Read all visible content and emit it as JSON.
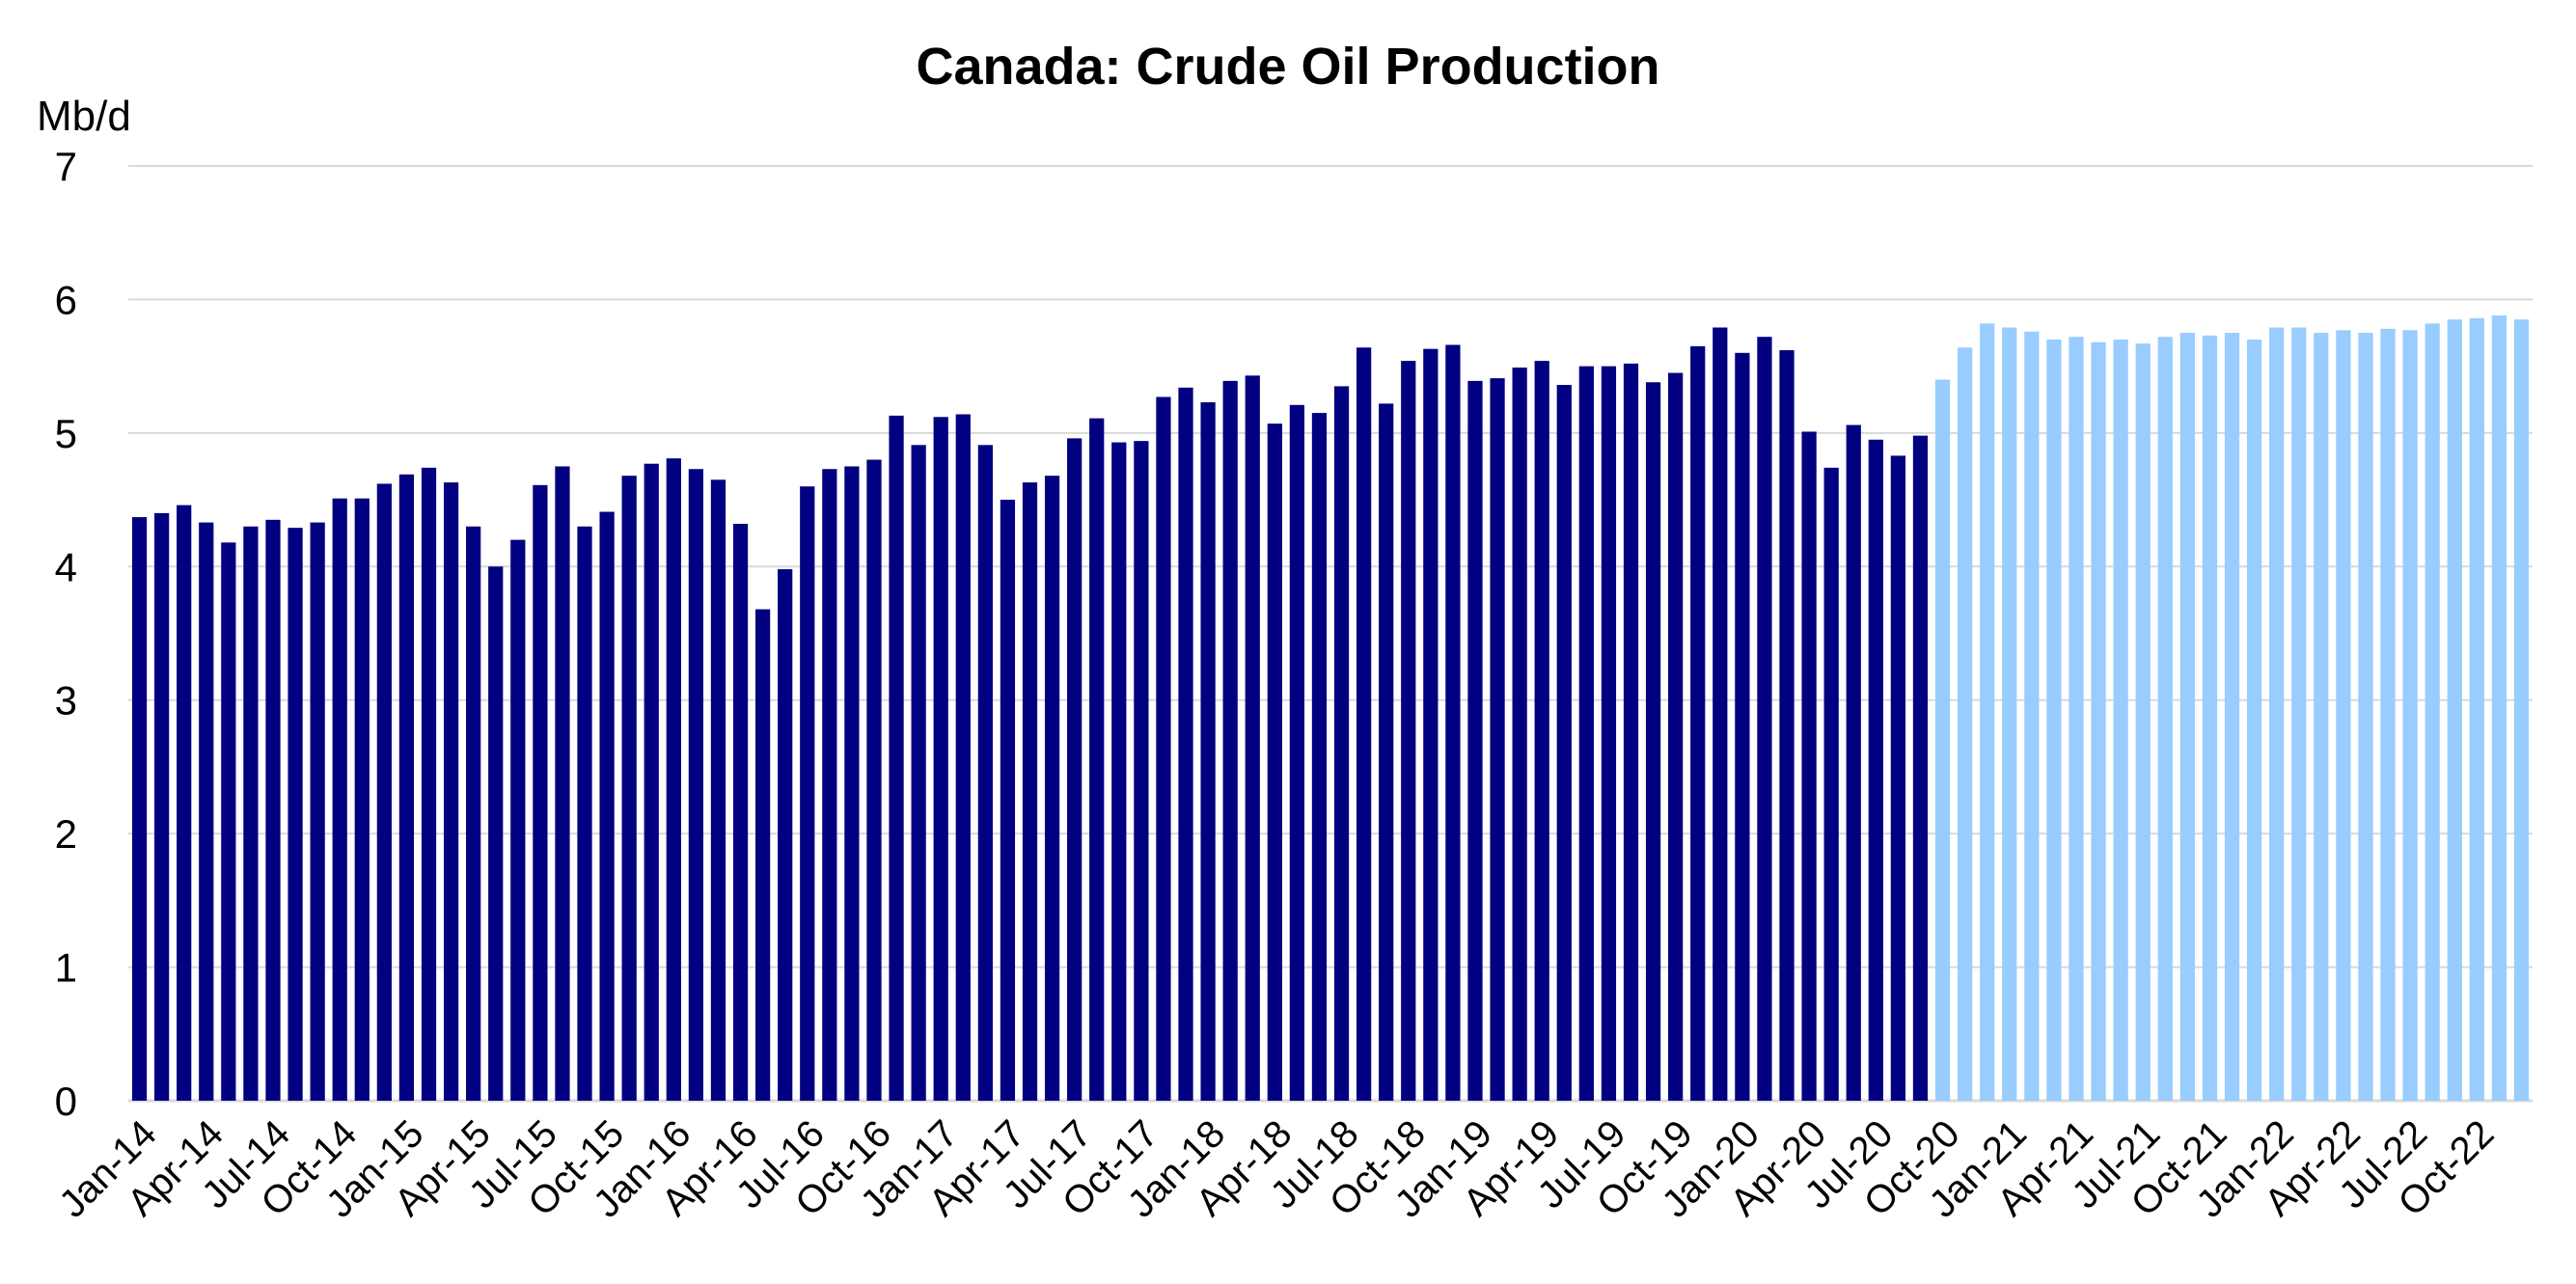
{
  "chart_data": {
    "type": "bar",
    "title": "Canada: Crude Oil Production",
    "ylabel": "Mb/d",
    "xlabel": "",
    "ylim": [
      0,
      7
    ],
    "yticks": [
      0,
      1,
      2,
      3,
      4,
      5,
      6,
      7
    ],
    "grid": true,
    "legend": "none",
    "colors": {
      "actual": "#000080",
      "forecast": "#99ccff",
      "grid": "#d9d9d9"
    },
    "forecast_start_index": 81,
    "categories": [
      "Jan-14",
      "Feb-14",
      "Mar-14",
      "Apr-14",
      "May-14",
      "Jun-14",
      "Jul-14",
      "Aug-14",
      "Sep-14",
      "Oct-14",
      "Nov-14",
      "Dec-14",
      "Jan-15",
      "Feb-15",
      "Mar-15",
      "Apr-15",
      "May-15",
      "Jun-15",
      "Jul-15",
      "Aug-15",
      "Sep-15",
      "Oct-15",
      "Nov-15",
      "Dec-15",
      "Jan-16",
      "Feb-16",
      "Mar-16",
      "Apr-16",
      "May-16",
      "Jun-16",
      "Jul-16",
      "Aug-16",
      "Sep-16",
      "Oct-16",
      "Nov-16",
      "Dec-16",
      "Jan-17",
      "Feb-17",
      "Mar-17",
      "Apr-17",
      "May-17",
      "Jun-17",
      "Jul-17",
      "Aug-17",
      "Sep-17",
      "Oct-17",
      "Nov-17",
      "Dec-17",
      "Jan-18",
      "Feb-18",
      "Mar-18",
      "Apr-18",
      "May-18",
      "Jun-18",
      "Jul-18",
      "Aug-18",
      "Sep-18",
      "Oct-18",
      "Nov-18",
      "Dec-18",
      "Jan-19",
      "Feb-19",
      "Mar-19",
      "Apr-19",
      "May-19",
      "Jun-19",
      "Jul-19",
      "Aug-19",
      "Sep-19",
      "Oct-19",
      "Nov-19",
      "Dec-19",
      "Jan-20",
      "Feb-20",
      "Mar-20",
      "Apr-20",
      "May-20",
      "Jun-20",
      "Jul-20",
      "Aug-20",
      "Sep-20",
      "Oct-20",
      "Nov-20",
      "Dec-20",
      "Jan-21",
      "Feb-21",
      "Mar-21",
      "Apr-21",
      "May-21",
      "Jun-21",
      "Jul-21",
      "Aug-21",
      "Sep-21",
      "Oct-21",
      "Nov-21",
      "Dec-21",
      "Jan-22",
      "Feb-22",
      "Mar-22",
      "Apr-22",
      "May-22",
      "Jun-22",
      "Jul-22",
      "Aug-22",
      "Sep-22",
      "Oct-22",
      "Nov-22",
      "Dec-22"
    ],
    "tick_labels": [
      "Jan-14",
      "Apr-14",
      "Jul-14",
      "Oct-14",
      "Jan-15",
      "Apr-15",
      "Jul-15",
      "Oct-15",
      "Jan-16",
      "Apr-16",
      "Jul-16",
      "Oct-16",
      "Jan-17",
      "Apr-17",
      "Jul-17",
      "Oct-17",
      "Jan-18",
      "Apr-18",
      "Jul-18",
      "Oct-18",
      "Jan-19",
      "Apr-19",
      "Jul-19",
      "Oct-19",
      "Jan-20",
      "Apr-20",
      "Jul-20",
      "Oct-20",
      "Jan-21",
      "Apr-21",
      "Jul-21",
      "Oct-21",
      "Jan-22",
      "Apr-22",
      "Jul-22",
      "Oct-22"
    ],
    "values": [
      4.37,
      4.4,
      4.46,
      4.33,
      4.18,
      4.3,
      4.35,
      4.29,
      4.33,
      4.51,
      4.51,
      4.62,
      4.69,
      4.74,
      4.63,
      4.3,
      4.0,
      4.2,
      4.61,
      4.75,
      4.3,
      4.41,
      4.68,
      4.77,
      4.81,
      4.73,
      4.65,
      4.32,
      3.68,
      3.98,
      4.6,
      4.73,
      4.75,
      4.8,
      5.13,
      4.91,
      5.12,
      5.14,
      4.91,
      4.5,
      4.63,
      4.68,
      4.96,
      5.11,
      4.93,
      4.94,
      5.27,
      5.34,
      5.23,
      5.39,
      5.43,
      5.07,
      5.21,
      5.15,
      5.35,
      5.64,
      5.22,
      5.54,
      5.63,
      5.66,
      5.39,
      5.41,
      5.49,
      5.54,
      5.36,
      5.5,
      5.5,
      5.52,
      5.38,
      5.45,
      5.65,
      5.79,
      5.6,
      5.72,
      5.62,
      5.01,
      4.74,
      5.06,
      4.95,
      4.83,
      4.98,
      5.4,
      5.64,
      5.82,
      5.79,
      5.76,
      5.7,
      5.72,
      5.68,
      5.7,
      5.67,
      5.72,
      5.75,
      5.73,
      5.75,
      5.7,
      5.79,
      5.79,
      5.75,
      5.77,
      5.75,
      5.78,
      5.77,
      5.82,
      5.85,
      5.86,
      5.88,
      5.85
    ]
  }
}
